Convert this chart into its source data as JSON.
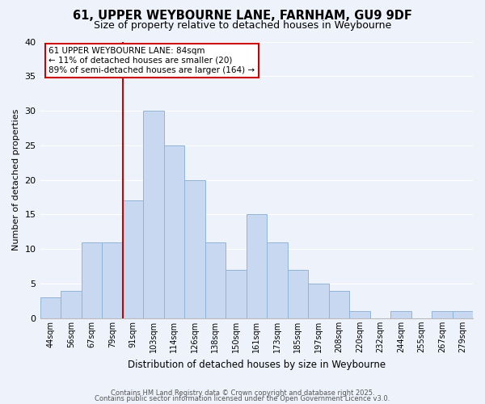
{
  "title": "61, UPPER WEYBOURNE LANE, FARNHAM, GU9 9DF",
  "subtitle": "Size of property relative to detached houses in Weybourne",
  "xlabel": "Distribution of detached houses by size in Weybourne",
  "ylabel": "Number of detached properties",
  "bin_labels": [
    "44sqm",
    "56sqm",
    "67sqm",
    "79sqm",
    "91sqm",
    "103sqm",
    "114sqm",
    "126sqm",
    "138sqm",
    "150sqm",
    "161sqm",
    "173sqm",
    "185sqm",
    "197sqm",
    "208sqm",
    "220sqm",
    "232sqm",
    "244sqm",
    "255sqm",
    "267sqm",
    "279sqm"
  ],
  "bar_heights": [
    3,
    4,
    11,
    11,
    17,
    30,
    25,
    20,
    11,
    7,
    15,
    11,
    7,
    5,
    4,
    1,
    0,
    1,
    0,
    1,
    1
  ],
  "bar_color": "#c8d8f0",
  "bar_edge_color": "#90b4d8",
  "ylim": [
    0,
    40
  ],
  "yticks": [
    0,
    5,
    10,
    15,
    20,
    25,
    30,
    35,
    40
  ],
  "vline_x_bin": 4,
  "vline_color": "#cc0000",
  "annotation_title": "61 UPPER WEYBOURNE LANE: 84sqm",
  "annotation_line1": "← 11% of detached houses are smaller (20)",
  "annotation_line2": "89% of semi-detached houses are larger (164) →",
  "bg_color": "#eef2fb",
  "grid_color": "#ffffff",
  "footer1": "Contains HM Land Registry data © Crown copyright and database right 2025.",
  "footer2": "Contains public sector information licensed under the Open Government Licence v3.0."
}
